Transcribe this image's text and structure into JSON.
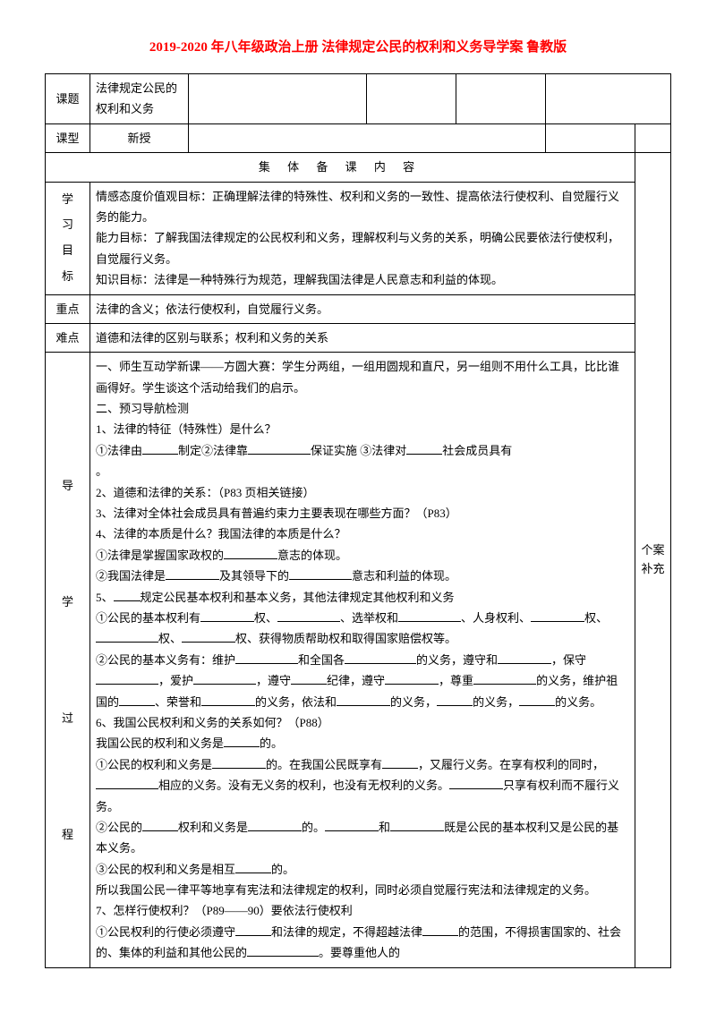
{
  "title": "2019-2020 年八年级政治上册 法律规定公民的权利和义务导学案 鲁教版",
  "row1": {
    "label": "课题",
    "value": "法律规定公民的权利和义务"
  },
  "row2": {
    "label": "课型",
    "value": "新授"
  },
  "section_header": "集 体 备 课 内 容",
  "side_note": "个案补充",
  "goals": {
    "label": "学习目标",
    "text1": "情感态度价值观目标：正确理解法律的特殊性、权利和义务的一致性、提高依法行使权利、自觉履行义务的能力。",
    "text2": "能力目标：了解我国法律规定的公民权利和义务，理解权利与义务的关系，明确公民要依法行使权利，自觉履行义务。",
    "text3": "知识目标：法律是一种特殊行为规范，理解我国法律是人民意志和利益的体现。"
  },
  "keypoint": {
    "label": "重点",
    "text": "法律的含义；依法行使权利，自觉履行义务。"
  },
  "difficulty": {
    "label": "难点",
    "text": "道德和法律的区别与联系；权利和义务的关系"
  },
  "process": {
    "label": "导学过程",
    "p1": "一、师生互动学新课——方圆大赛：学生分两组，一组用圆规和直尺，另一组则不用什么工具，比比谁画得好。学生谈这个活动给我们的启示。",
    "p2": "二、预习导航检测",
    "p3": "1、法律的特征（特殊性）是什么？",
    "p4a": "①法律由",
    "p4b": "制定②法律靠",
    "p4c": "保证实施 ③法律对",
    "p4d": "社会成员具有",
    "p4e": "。",
    "p5": "2、道德和法律的关系：（P83 页相关链接）",
    "p6": "3、法律对全体社会成员具有普遍约束力主要表现在哪些方面？（P83）",
    "p7": "4、法律的本质是什么？我国法律的本质是什么？",
    "p8a": "①法律是掌握国家政权的",
    "p8b": "意志的体现。",
    "p9a": "②我国法律是",
    "p9b": "及其领导下的",
    "p9c": "意志和利益的体现。",
    "p10a": "5、",
    "p10b": "规定公民基本权利和基本义务，其他法律规定其他权利和义务",
    "p11a": "①公民的基本权利有",
    "p11b": "权、",
    "p11c": "、选举权和",
    "p11d": "、人身权利、",
    "p11e": "权、",
    "p11f": "权、",
    "p11g": "权、获得物质帮助权和取得国家赔偿权等。",
    "p12a": "②公民的基本义务有：维护",
    "p12b": "和全国各",
    "p12c": "的义务，遵守和",
    "p12d": "，保守",
    "p12e": "，爱护",
    "p12f": "，遵守",
    "p12g": "纪律，遵守",
    "p12h": "，尊重",
    "p12i": "的义务，维护祖国的",
    "p12j": "、荣誉和",
    "p12k": "的义务，依法和",
    "p12l": "的义务，",
    "p12m": "的义务，",
    "p12n": "的义务。",
    "p13": "6、我国公民权利和义务的关系如何？（P88）",
    "p14a": "我国公民的权利和义务是",
    "p14b": "的。",
    "p15a": "①公民的权利和义务是",
    "p15b": "的。在我国公民既享有",
    "p15c": "，又履行义务。在享有权利的同时，",
    "p15d": "相应的义务。没有无义务的权利，也没有无权利的义务。",
    "p15e": "只享有权利而不履行义务。",
    "p16a": "②公民的",
    "p16b": "权利和义务是",
    "p16c": "的。",
    "p16d": "和",
    "p16e": "既是公民的基本权利又是公民的基本义务。",
    "p17a": "③公民的权利和义务是相互",
    "p17b": "的。",
    "p18": "所以我国公民一律平等地享有宪法和法律规定的权利，同时必须自觉履行宪法和法律规定的义务。",
    "p19": "7、怎样行使权利？（P89——90）要依法行使权利",
    "p20a": "①公民权利的行使必须遵守",
    "p20b": "和法律的规定，不得超越法律",
    "p20c": "的范围，不得损害国家的、社会的、集体的利益和其他公民的",
    "p20d": "。要尊重他人的"
  },
  "colors": {
    "title": "#FF0000",
    "text": "#000000",
    "border": "#000000",
    "background": "#ffffff"
  },
  "fontsize": {
    "title": 15,
    "body": 13
  }
}
